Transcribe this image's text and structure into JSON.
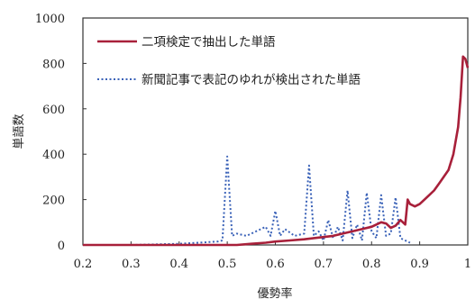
{
  "chart_data": {
    "type": "line",
    "xlabel": "優勢率",
    "ylabel": "単語数",
    "xlim": [
      0.2,
      1.0
    ],
    "ylim": [
      0,
      1000
    ],
    "x_ticks": [
      "0.2",
      "0.3",
      "0.4",
      "0.5",
      "0.6",
      "0.7",
      "0.8",
      "0.9",
      "1"
    ],
    "y_ticks": [
      "0",
      "200",
      "400",
      "600",
      "800",
      "1000"
    ],
    "legend_position": "top-left",
    "grid": false,
    "series": [
      {
        "name": "二項検定で抽出した単語",
        "style": "solid",
        "color": "#a8203a",
        "x": [
          0.2,
          0.45,
          0.52,
          0.55,
          0.58,
          0.6,
          0.63,
          0.66,
          0.68,
          0.7,
          0.72,
          0.74,
          0.76,
          0.78,
          0.8,
          0.81,
          0.82,
          0.83,
          0.84,
          0.85,
          0.86,
          0.87,
          0.875,
          0.88,
          0.89,
          0.9,
          0.91,
          0.92,
          0.93,
          0.94,
          0.95,
          0.96,
          0.97,
          0.98,
          0.985,
          0.99,
          0.995,
          1.0
        ],
        "values": [
          0,
          0,
          0,
          5,
          10,
          15,
          20,
          25,
          30,
          35,
          40,
          50,
          60,
          70,
          80,
          90,
          100,
          95,
          75,
          85,
          110,
          90,
          200,
          180,
          170,
          180,
          200,
          220,
          240,
          270,
          300,
          330,
          400,
          520,
          650,
          830,
          820,
          780
        ]
      },
      {
        "name": "新聞記事で表記のゆれが検出された単語",
        "style": "dotted",
        "color": "#3a62b8",
        "x": [
          0.2,
          0.3,
          0.4,
          0.44,
          0.48,
          0.49,
          0.5,
          0.51,
          0.52,
          0.54,
          0.56,
          0.58,
          0.59,
          0.6,
          0.61,
          0.62,
          0.64,
          0.66,
          0.67,
          0.68,
          0.69,
          0.7,
          0.71,
          0.72,
          0.73,
          0.74,
          0.75,
          0.76,
          0.77,
          0.78,
          0.79,
          0.8,
          0.81,
          0.82,
          0.83,
          0.84,
          0.85,
          0.86,
          0.87,
          0.88
        ],
        "values": [
          0,
          0,
          5,
          10,
          15,
          20,
          390,
          40,
          50,
          40,
          60,
          80,
          40,
          150,
          40,
          70,
          40,
          50,
          350,
          40,
          60,
          20,
          110,
          30,
          80,
          20,
          240,
          30,
          90,
          20,
          230,
          60,
          30,
          220,
          40,
          50,
          210,
          30,
          20,
          10
        ]
      }
    ]
  }
}
